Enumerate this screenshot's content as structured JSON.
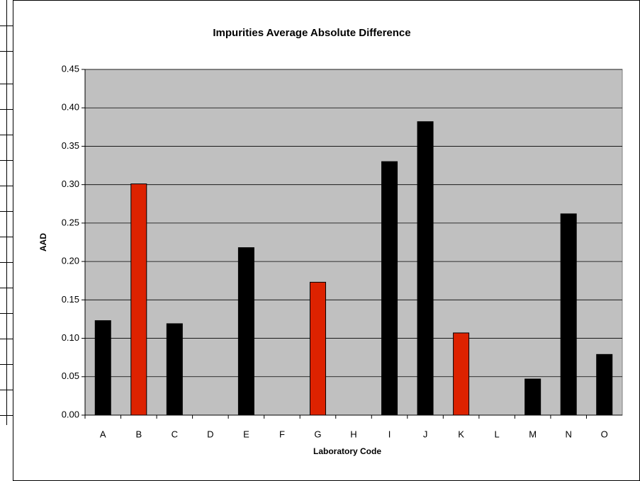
{
  "chart_data": {
    "type": "bar",
    "title": "Impurities Average Absolute Difference",
    "x_label": "Laboratory Code",
    "y_label": "AAD",
    "categories": [
      "A",
      "B",
      "C",
      "D",
      "E",
      "F",
      "G",
      "H",
      "I",
      "J",
      "K",
      "L",
      "M",
      "N",
      "O"
    ],
    "values": [
      0.123,
      0.301,
      0.119,
      0,
      0.218,
      0,
      0.173,
      0,
      0.33,
      0.382,
      0.107,
      0,
      0.047,
      0.262,
      0.079
    ],
    "colors": [
      "#000000",
      "#dd2200",
      "#000000",
      "#000000",
      "#000000",
      "#000000",
      "#dd2200",
      "#000000",
      "#000000",
      "#000000",
      "#dd2200",
      "#000000",
      "#000000",
      "#000000",
      "#000000"
    ],
    "ylim": [
      0,
      0.45
    ],
    "yticks": [
      {
        "value": 0,
        "label": "0.00"
      },
      {
        "value": 0.05,
        "label": "0.05"
      },
      {
        "value": 0.1,
        "label": "0.10"
      },
      {
        "value": 0.15,
        "label": "0.15"
      },
      {
        "value": 0.2,
        "label": "0.20"
      },
      {
        "value": 0.25,
        "label": "0.25"
      },
      {
        "value": 0.3,
        "label": "0.30"
      },
      {
        "value": 0.35,
        "label": "0.35"
      },
      {
        "value": 0.4,
        "label": "0.40"
      },
      {
        "value": 0.45,
        "label": "0.45"
      }
    ],
    "grid": true
  }
}
